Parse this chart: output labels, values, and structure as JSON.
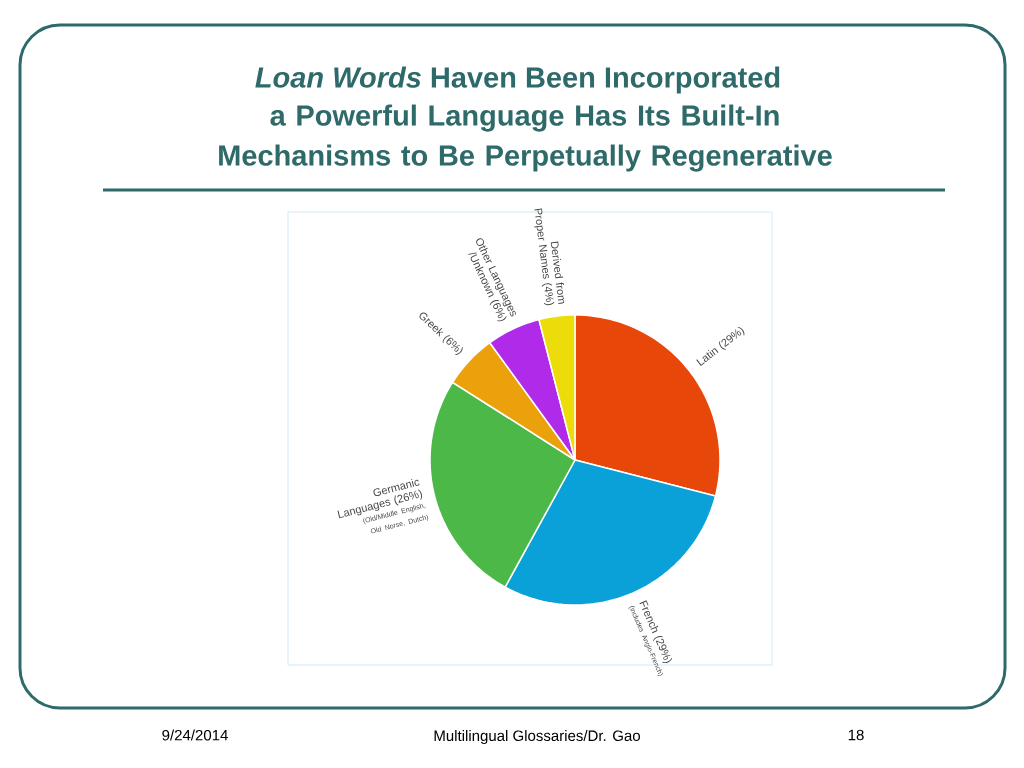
{
  "chart_data": {
    "type": "pie",
    "title": "*Loan Words* Haven Been Incorporated",
    "subtitle": "a Powerful Language Has Its Built-In Mechanisms to Be Perpetually Regenerative",
    "categories": [
      "Latin (29%)",
      "French (29%)",
      "Germanic Languages (26%)",
      "Greek (6%)",
      "Other Languages /Unknown (6%)",
      "Derived from Proper Names (4%)"
    ],
    "values": [
      29,
      29,
      26,
      6,
      6,
      4
    ],
    "colors": [
      "#e8470a",
      "#0aa0d8",
      "#4cb848",
      "#eba10c",
      "#b02aea",
      "#ecdc0a"
    ],
    "annotations": [
      {
        "text": "(includes Anglo-French)",
        "x": "French (29%)"
      },
      {
        "text": "(Old/Middle English, Old Norse, Dutch)",
        "x": "Germanic Languages (26%)"
      },
      "9/24/2014",
      "Multilingual Glossaries/Dr. Gao",
      "18"
    ]
  }
}
